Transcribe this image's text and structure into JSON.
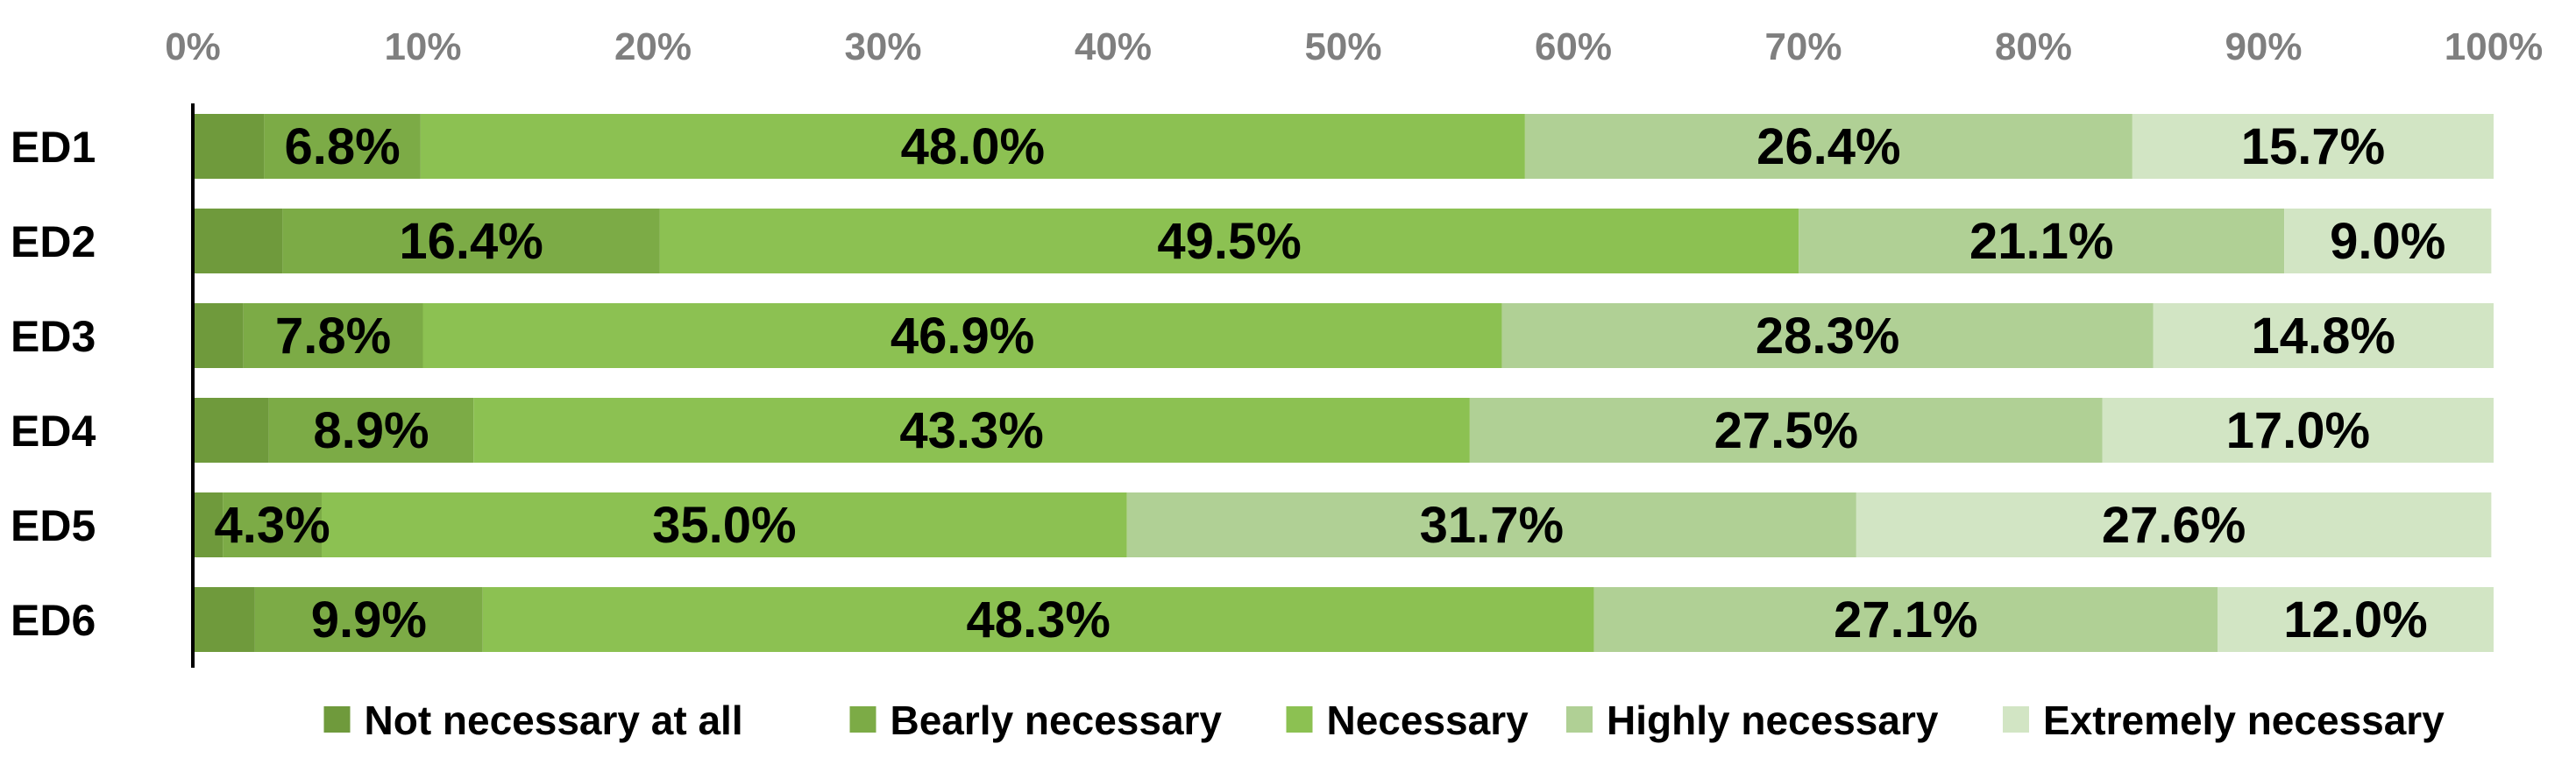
{
  "chart_data": {
    "type": "bar",
    "orientation": "horizontal",
    "stacked": true,
    "percent_stacked": true,
    "categories": [
      "ED1",
      "ED2",
      "ED3",
      "ED4",
      "ED5",
      "ED6"
    ],
    "series": [
      {
        "name": "Not necessary at all",
        "color": "#6f9a3c",
        "values": [
          3.1,
          3.9,
          2.2,
          3.3,
          1.3,
          2.7
        ],
        "labels": [
          "",
          "",
          "",
          "",
          "",
          ""
        ]
      },
      {
        "name": "Bearly necessary",
        "color": "#7cab46",
        "values": [
          6.8,
          16.4,
          7.8,
          8.9,
          4.3,
          9.9
        ],
        "labels": [
          "6.8%",
          "16.4%",
          "7.8%",
          "8.9%",
          "4.3%",
          "9.9%"
        ]
      },
      {
        "name": "Necessary",
        "color": "#8cc152",
        "values": [
          48.0,
          49.5,
          46.9,
          43.3,
          35.0,
          48.3
        ],
        "labels": [
          "48.0%",
          "49.5%",
          "46.9%",
          "43.3%",
          "35.0%",
          "48.3%"
        ]
      },
      {
        "name": "Highly necessary",
        "color": "#b0d095",
        "values": [
          26.4,
          21.1,
          28.3,
          27.5,
          31.7,
          27.1
        ],
        "labels": [
          "26.4%",
          "21.1%",
          "28.3%",
          "27.5%",
          "31.7%",
          "27.1%"
        ]
      },
      {
        "name": "Extremely necessary",
        "color": "#d2e5c4",
        "values": [
          15.7,
          9.0,
          14.8,
          17.0,
          27.6,
          12.0
        ],
        "labels": [
          "15.7%",
          "9.0%",
          "14.8%",
          "17.0%",
          "27.6%",
          "12.0%"
        ]
      }
    ],
    "xlim": [
      0,
      100
    ],
    "ticks": [
      "0%",
      "10%",
      "20%",
      "30%",
      "40%",
      "50%",
      "60%",
      "70%",
      "80%",
      "90%",
      "100%"
    ],
    "axis_position": "top",
    "grid": false,
    "legend": "bottom"
  }
}
